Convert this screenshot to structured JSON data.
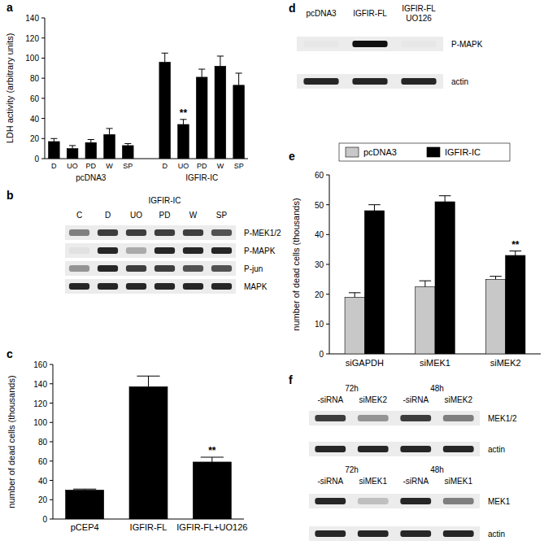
{
  "chart_data": [
    {
      "label": "a",
      "type": "bar",
      "ylabel": "LDH activity (arbitrary units)",
      "categories": [
        "D",
        "UO",
        "PD",
        "W",
        "SP",
        "D",
        "UO",
        "PD",
        "W",
        "SP"
      ],
      "groups": [
        "pcDNA3",
        "IGFIR-IC"
      ],
      "values": [
        17,
        10,
        16,
        24,
        13,
        96,
        34,
        81,
        92,
        73
      ],
      "errors": [
        3,
        3,
        3,
        6,
        2,
        9,
        5,
        8,
        10,
        12
      ],
      "color": "#000000",
      "ylim": [
        0,
        140
      ],
      "yticks": [
        0,
        20,
        40,
        60,
        80,
        100,
        120,
        140
      ],
      "annotations": [
        {
          "text": "**",
          "at": 6
        }
      ]
    },
    {
      "label": "c",
      "type": "bar",
      "ylabel": "number of dead cells (thousands)",
      "categories": [
        "pCEP4",
        "IGFIR-FL",
        "IGFIR-FL+UO126"
      ],
      "values": [
        30,
        137,
        59
      ],
      "errors": [
        1,
        11,
        5
      ],
      "color": "#000000",
      "ylim": [
        0,
        160
      ],
      "yticks": [
        0,
        20,
        40,
        60,
        80,
        100,
        120,
        140,
        160
      ],
      "annotations": [
        {
          "text": "**",
          "at": 2
        }
      ]
    },
    {
      "label": "e",
      "type": "bar",
      "ylabel": "number of dead cells (thousands)",
      "categories": [
        "siGAPDH",
        "siMEK1",
        "siMEK2"
      ],
      "series": [
        {
          "name": "pcDNA3",
          "color": "#c8c8c8",
          "values": [
            19,
            22.5,
            25
          ],
          "errors": [
            1.5,
            2,
            1
          ]
        },
        {
          "name": "IGFIR-IC",
          "color": "#000000",
          "values": [
            48,
            51,
            33
          ],
          "errors": [
            2,
            2,
            1.5
          ]
        }
      ],
      "ylim": [
        0,
        60
      ],
      "yticks": [
        0,
        10,
        20,
        30,
        40,
        50,
        60
      ],
      "legend": "top",
      "annotations": [
        {
          "text": "**",
          "at": 2,
          "series": 1
        }
      ]
    }
  ],
  "blots": [
    {
      "panel": "b",
      "lanes": [
        "C",
        "D",
        "UO",
        "PD",
        "W",
        "SP"
      ],
      "lane_groups": [
        {
          "label": "IGFIR-IC",
          "from": 1,
          "to": 5
        }
      ],
      "rows": [
        {
          "name": "P-MEK1/2",
          "intensity": [
            0.5,
            0.8,
            0.8,
            0.8,
            0.8,
            0.7
          ]
        },
        {
          "name": "P-MAPK",
          "intensity": [
            0.05,
            0.9,
            0.3,
            0.9,
            0.9,
            0.9
          ]
        },
        {
          "name": "P-jun",
          "intensity": [
            0.4,
            0.9,
            0.8,
            0.8,
            0.7,
            0.7
          ]
        },
        {
          "name": "MAPK",
          "intensity": [
            0.9,
            0.9,
            0.9,
            0.9,
            0.9,
            0.9
          ]
        }
      ]
    },
    {
      "panel": "d",
      "lanes": [
        "pcDNA3",
        "IGFIR-FL",
        "IGFIR-FL\nUO126"
      ],
      "rows": [
        {
          "name": "P-MAPK",
          "intensity": [
            0.02,
            1,
            0.02
          ]
        },
        {
          "name": "actin",
          "intensity": [
            0.9,
            0.9,
            0.9
          ]
        }
      ]
    },
    {
      "panel": "f",
      "lanes": [
        "-siRNA",
        "siMEK2",
        "-siRNA",
        "siMEK2"
      ],
      "lane_groups": [
        {
          "label": "72h",
          "from": 0,
          "to": 1
        },
        {
          "label": "48h",
          "from": 2,
          "to": 3
        }
      ],
      "rows": [
        {
          "name": "MEK1/2",
          "intensity": [
            0.8,
            0.4,
            0.8,
            0.5
          ]
        },
        {
          "name": "actin",
          "intensity": [
            0.9,
            0.9,
            0.9,
            0.9
          ]
        }
      ]
    },
    {
      "lanes": [
        "-siRNA",
        "siMEK1",
        "-siRNA",
        "siMEK1"
      ],
      "lane_groups": [
        {
          "label": "72h",
          "from": 0,
          "to": 1
        },
        {
          "label": "48h",
          "from": 2,
          "to": 3
        }
      ],
      "rows": [
        {
          "name": "MEK1",
          "intensity": [
            0.9,
            0.2,
            0.9,
            0.5
          ]
        },
        {
          "name": "actin",
          "intensity": [
            0.9,
            0.9,
            0.9,
            0.9
          ]
        }
      ]
    }
  ]
}
